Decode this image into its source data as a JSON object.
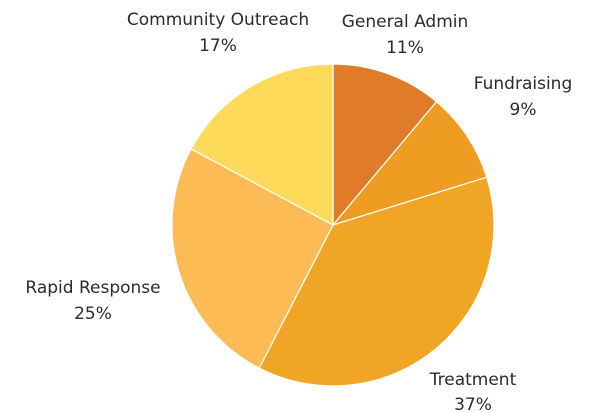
{
  "chart_data": {
    "type": "pie",
    "title": "",
    "slices": [
      {
        "label": "General Admin",
        "value": 11,
        "value_label": "11%",
        "color": "#E07B2A"
      },
      {
        "label": "Fundraising",
        "value": 9,
        "value_label": "9%",
        "color": "#EE9D22"
      },
      {
        "label": "Treatment",
        "value": 37,
        "value_label": "37%",
        "color": "#F0A624"
      },
      {
        "label": "Rapid Response",
        "value": 25,
        "value_label": "25%",
        "color": "#FDBB55"
      },
      {
        "label": "Community Outreach",
        "value": 17,
        "value_label": "17%",
        "color": "#FDDA5A"
      }
    ],
    "start": "12 o'clock",
    "direction": "clockwise",
    "legend": "none"
  }
}
